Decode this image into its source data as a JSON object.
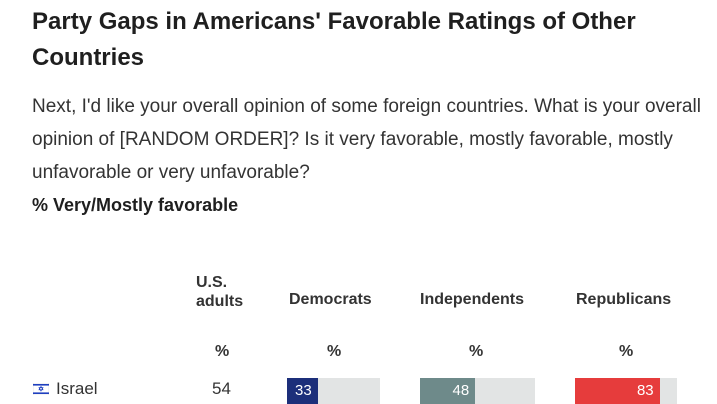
{
  "header": {
    "title": "Party Gaps in Americans' Favorable Ratings of Other Countries",
    "question": "Next, I'd like your overall opinion of some foreign countries. What is your overall opinion of [RANDOM ORDER]? Is it very favorable, mostly favorable, mostly unfavorable or very unfavorable?",
    "measure": "% Very/Mostly favorable"
  },
  "columns": {
    "adults": "U.S. adults",
    "democrats": "Democrats",
    "independents": "Independents",
    "republicans": "Republicans",
    "pct": "%"
  },
  "row": {
    "country": "Israel",
    "flag_icon": "israel-flag-icon",
    "adults": "54"
  },
  "colors": {
    "democrats": "#1c2f7a",
    "independents": "#6e8a8a",
    "republicans": "#e63c3c",
    "track": "#e2e4e4"
  },
  "chart_data": {
    "type": "bar",
    "orientation": "horizontal",
    "categories": [
      "Israel"
    ],
    "series": [
      {
        "name": "Democrats",
        "values": [
          33
        ]
      },
      {
        "name": "Independents",
        "values": [
          48
        ]
      },
      {
        "name": "Republicans",
        "values": [
          83
        ]
      }
    ],
    "xlim": [
      0,
      100
    ],
    "labels": [
      "33",
      "48",
      "83"
    ]
  }
}
